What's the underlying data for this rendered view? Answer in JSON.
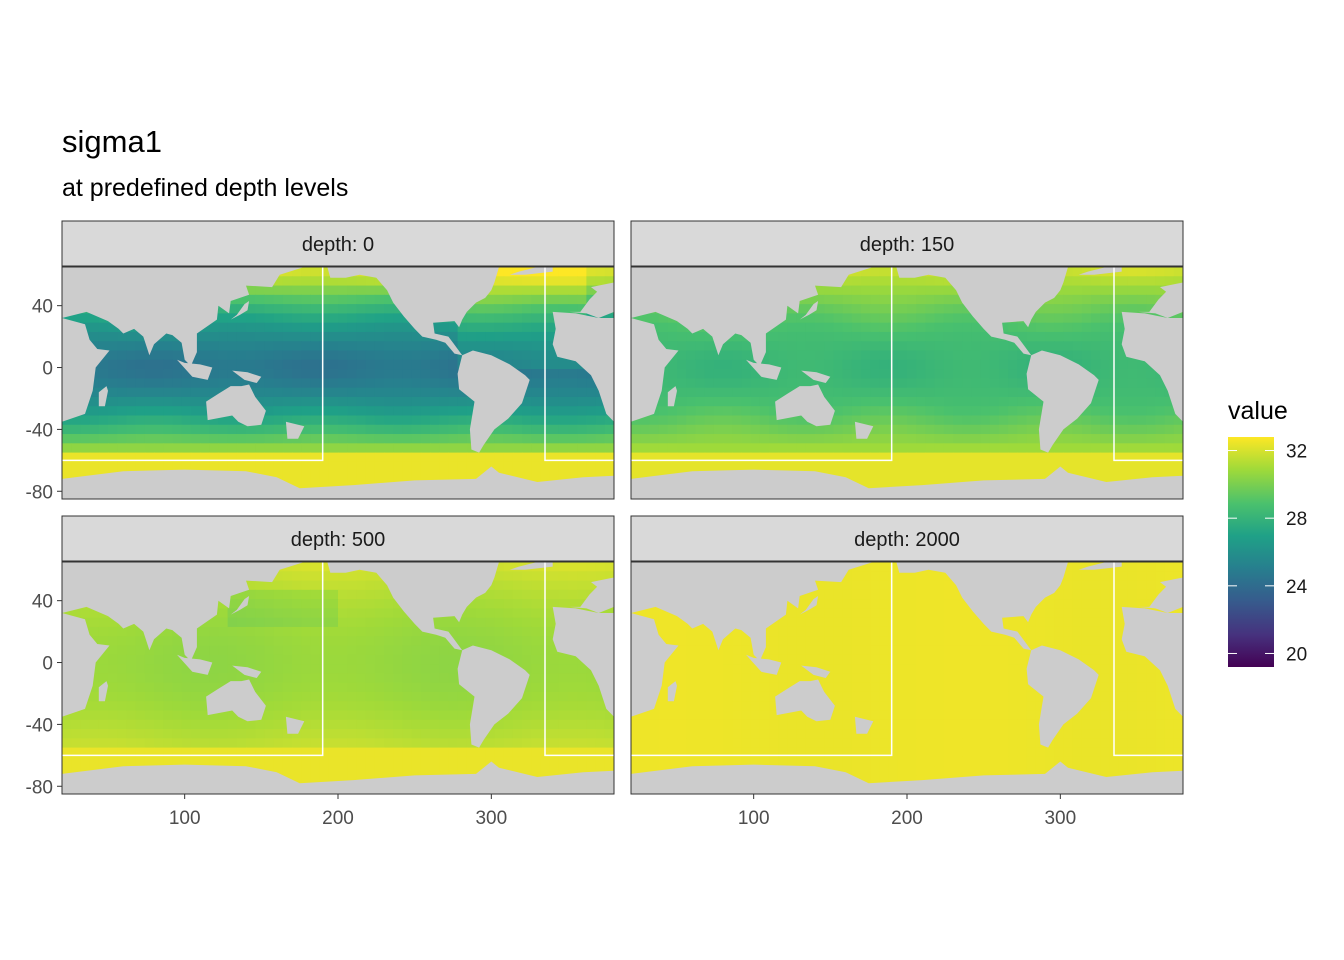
{
  "chart_data": {
    "type": "heatmap",
    "title": "sigma1",
    "subtitle": "at predefined depth levels",
    "facet_label_prefix": "depth: ",
    "facets": [
      {
        "depth": 0,
        "label": "depth: 0",
        "description": "surface: low values (~24-26) in tropical Pacific/Indian, rising to ~32 toward Southern Ocean"
      },
      {
        "depth": 150,
        "label": "depth: 150",
        "description": "mostly ~28-29 in tropics, ~30-31 toward high latitudes"
      },
      {
        "depth": 500,
        "label": "depth: 500",
        "description": "mostly ~30-31, near uniform, ~32 in Southern Ocean"
      },
      {
        "depth": 2000,
        "label": "depth: 2000",
        "description": "near uniform ~32 everywhere"
      }
    ],
    "x_ticks": [
      100,
      200,
      300
    ],
    "y_ticks": [
      40,
      0,
      -40,
      -80
    ],
    "xlim": [
      20,
      380
    ],
    "ylim": [
      -85,
      65
    ],
    "boundary_box": {
      "x1": 190,
      "x2": 335,
      "y_bottom": -60
    },
    "legend": {
      "title": "value",
      "ticks": [
        32,
        28,
        24,
        20
      ],
      "range": [
        19.2,
        32.8
      ],
      "colormap": "viridis",
      "position": "right"
    },
    "na_color": "#cccccc",
    "land_color": "#ffffff"
  }
}
